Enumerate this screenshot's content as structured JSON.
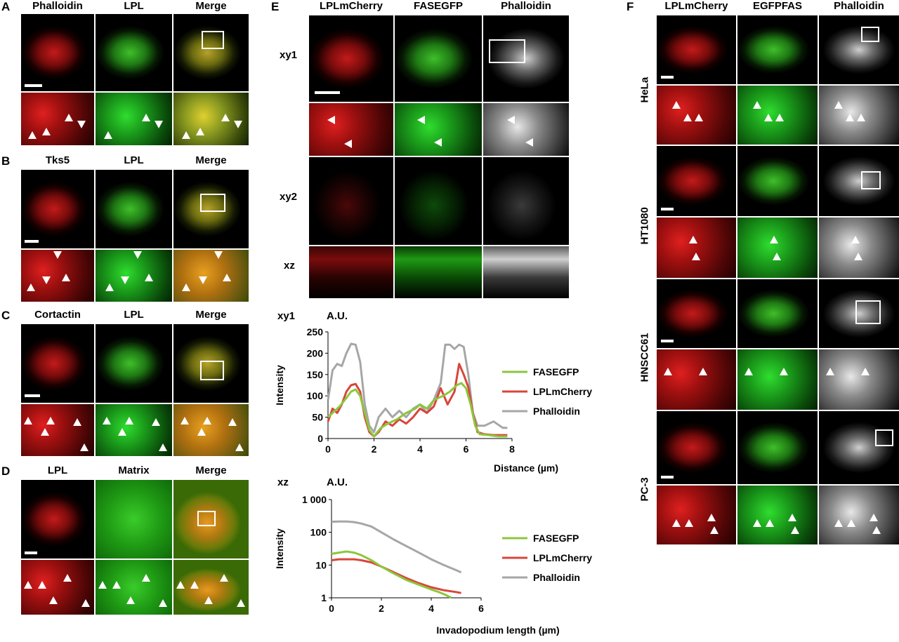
{
  "panels": {
    "A": {
      "letter": "A",
      "headers": [
        "Phalloidin",
        "LPL",
        "Merge"
      ]
    },
    "B": {
      "letter": "B",
      "headers": [
        "Tks5",
        "LPL",
        "Merge"
      ]
    },
    "C": {
      "letter": "C",
      "headers": [
        "Cortactin",
        "LPL",
        "Merge"
      ]
    },
    "D": {
      "letter": "D",
      "headers": [
        "LPL",
        "Matrix",
        "Merge"
      ]
    },
    "E": {
      "letter": "E",
      "headers": [
        "LPLmCherry",
        "FASEGFP",
        "Phalloidin"
      ],
      "rows": [
        "xy1",
        "",
        "xy2",
        "xz"
      ]
    },
    "F": {
      "letter": "F",
      "headers": [
        "LPLmCherry",
        "EGFPFAS",
        "Phalloidin"
      ],
      "cell_lines": [
        "HeLa",
        "HT1080",
        "HNSCC61",
        "PC-3"
      ]
    }
  },
  "chart_data": [
    {
      "type": "line",
      "title": "xy1",
      "unit_label": "A.U.",
      "xlabel": "Distance (µm)",
      "ylabel": "Intensity",
      "xlim": [
        0,
        8
      ],
      "ylim": [
        0,
        250
      ],
      "xticks": [
        "0",
        "2",
        "4",
        "6",
        "8"
      ],
      "yticks": [
        "0",
        "50",
        "100",
        "150",
        "200",
        "250"
      ],
      "legend_position": "right",
      "series": [
        {
          "name": "FASEGFP",
          "color": "#8cc63e",
          "x": [
            0,
            0.2,
            0.5,
            0.8,
            1.0,
            1.2,
            1.4,
            1.6,
            1.8,
            2.0,
            2.3,
            2.6,
            3.0,
            3.4,
            3.8,
            4.0,
            4.3,
            4.6,
            5.0,
            5.3,
            5.6,
            5.8,
            6.0,
            6.2,
            6.4,
            6.6,
            7.0,
            7.4,
            7.8
          ],
          "y": [
            50,
            60,
            75,
            95,
            110,
            115,
            100,
            60,
            20,
            5,
            25,
            35,
            45,
            60,
            70,
            80,
            70,
            90,
            100,
            110,
            125,
            130,
            118,
            80,
            30,
            10,
            8,
            5,
            5
          ]
        },
        {
          "name": "LPLmCherry",
          "color": "#d9453b",
          "x": [
            0,
            0.2,
            0.4,
            0.6,
            0.8,
            1.0,
            1.2,
            1.4,
            1.6,
            1.8,
            2.0,
            2.2,
            2.5,
            2.8,
            3.1,
            3.4,
            3.7,
            4.0,
            4.3,
            4.6,
            4.9,
            5.2,
            5.5,
            5.7,
            5.9,
            6.1,
            6.3,
            6.5,
            6.8,
            7.2,
            7.8
          ],
          "y": [
            40,
            70,
            60,
            80,
            110,
            125,
            128,
            110,
            50,
            15,
            5,
            15,
            40,
            30,
            45,
            35,
            50,
            70,
            60,
            75,
            118,
            80,
            110,
            175,
            150,
            120,
            60,
            15,
            10,
            8,
            8
          ]
        },
        {
          "name": "Phalloidin",
          "color": "#a6a6a6",
          "x": [
            0,
            0.2,
            0.4,
            0.6,
            0.8,
            1.0,
            1.2,
            1.4,
            1.6,
            1.8,
            2.0,
            2.2,
            2.5,
            2.8,
            3.1,
            3.4,
            3.7,
            4.0,
            4.3,
            4.6,
            4.9,
            5.1,
            5.3,
            5.5,
            5.7,
            5.9,
            6.1,
            6.3,
            6.5,
            6.8,
            7.2,
            7.6,
            7.8
          ],
          "y": [
            90,
            160,
            175,
            170,
            200,
            222,
            220,
            180,
            80,
            30,
            15,
            50,
            70,
            50,
            65,
            50,
            70,
            80,
            60,
            90,
            130,
            220,
            220,
            210,
            220,
            215,
            150,
            60,
            30,
            30,
            40,
            25,
            25
          ]
        }
      ]
    },
    {
      "type": "line",
      "title": "xz",
      "unit_label": "A.U.",
      "xlabel": "Invadopodium length (µm)",
      "ylabel": "Intensity",
      "yscale": "log",
      "xlim": [
        0,
        6
      ],
      "ylim": [
        1,
        1000
      ],
      "xticks": [
        "0",
        "2",
        "4",
        "6"
      ],
      "yticks": [
        "1",
        "10",
        "100",
        "1 000"
      ],
      "legend_position": "right",
      "series": [
        {
          "name": "FASEGFP",
          "color": "#8cc63e",
          "x": [
            0,
            0.3,
            0.6,
            0.9,
            1.2,
            1.6,
            2.0,
            2.5,
            3.0,
            3.5,
            4.0,
            4.3,
            4.6,
            4.8
          ],
          "y": [
            22,
            24,
            26,
            24,
            20,
            14,
            9,
            5.5,
            3.5,
            2.5,
            1.8,
            1.5,
            1.2,
            1.0
          ]
        },
        {
          "name": "LPLmCherry",
          "color": "#d9453b",
          "x": [
            0,
            0.3,
            0.6,
            0.9,
            1.2,
            1.6,
            2.0,
            2.5,
            3.0,
            3.5,
            4.0,
            4.5,
            5.0,
            5.2
          ],
          "y": [
            14,
            15,
            15,
            15,
            14,
            12,
            9,
            6,
            4,
            2.8,
            2.1,
            1.7,
            1.5,
            1.4
          ]
        },
        {
          "name": "Phalloidin",
          "color": "#a6a6a6",
          "x": [
            0,
            0.3,
            0.6,
            0.9,
            1.2,
            1.6,
            2.0,
            2.5,
            3.0,
            3.5,
            4.0,
            4.5,
            5.0,
            5.2
          ],
          "y": [
            210,
            215,
            215,
            205,
            185,
            150,
            100,
            60,
            38,
            24,
            15,
            10,
            7,
            6
          ]
        }
      ]
    }
  ]
}
